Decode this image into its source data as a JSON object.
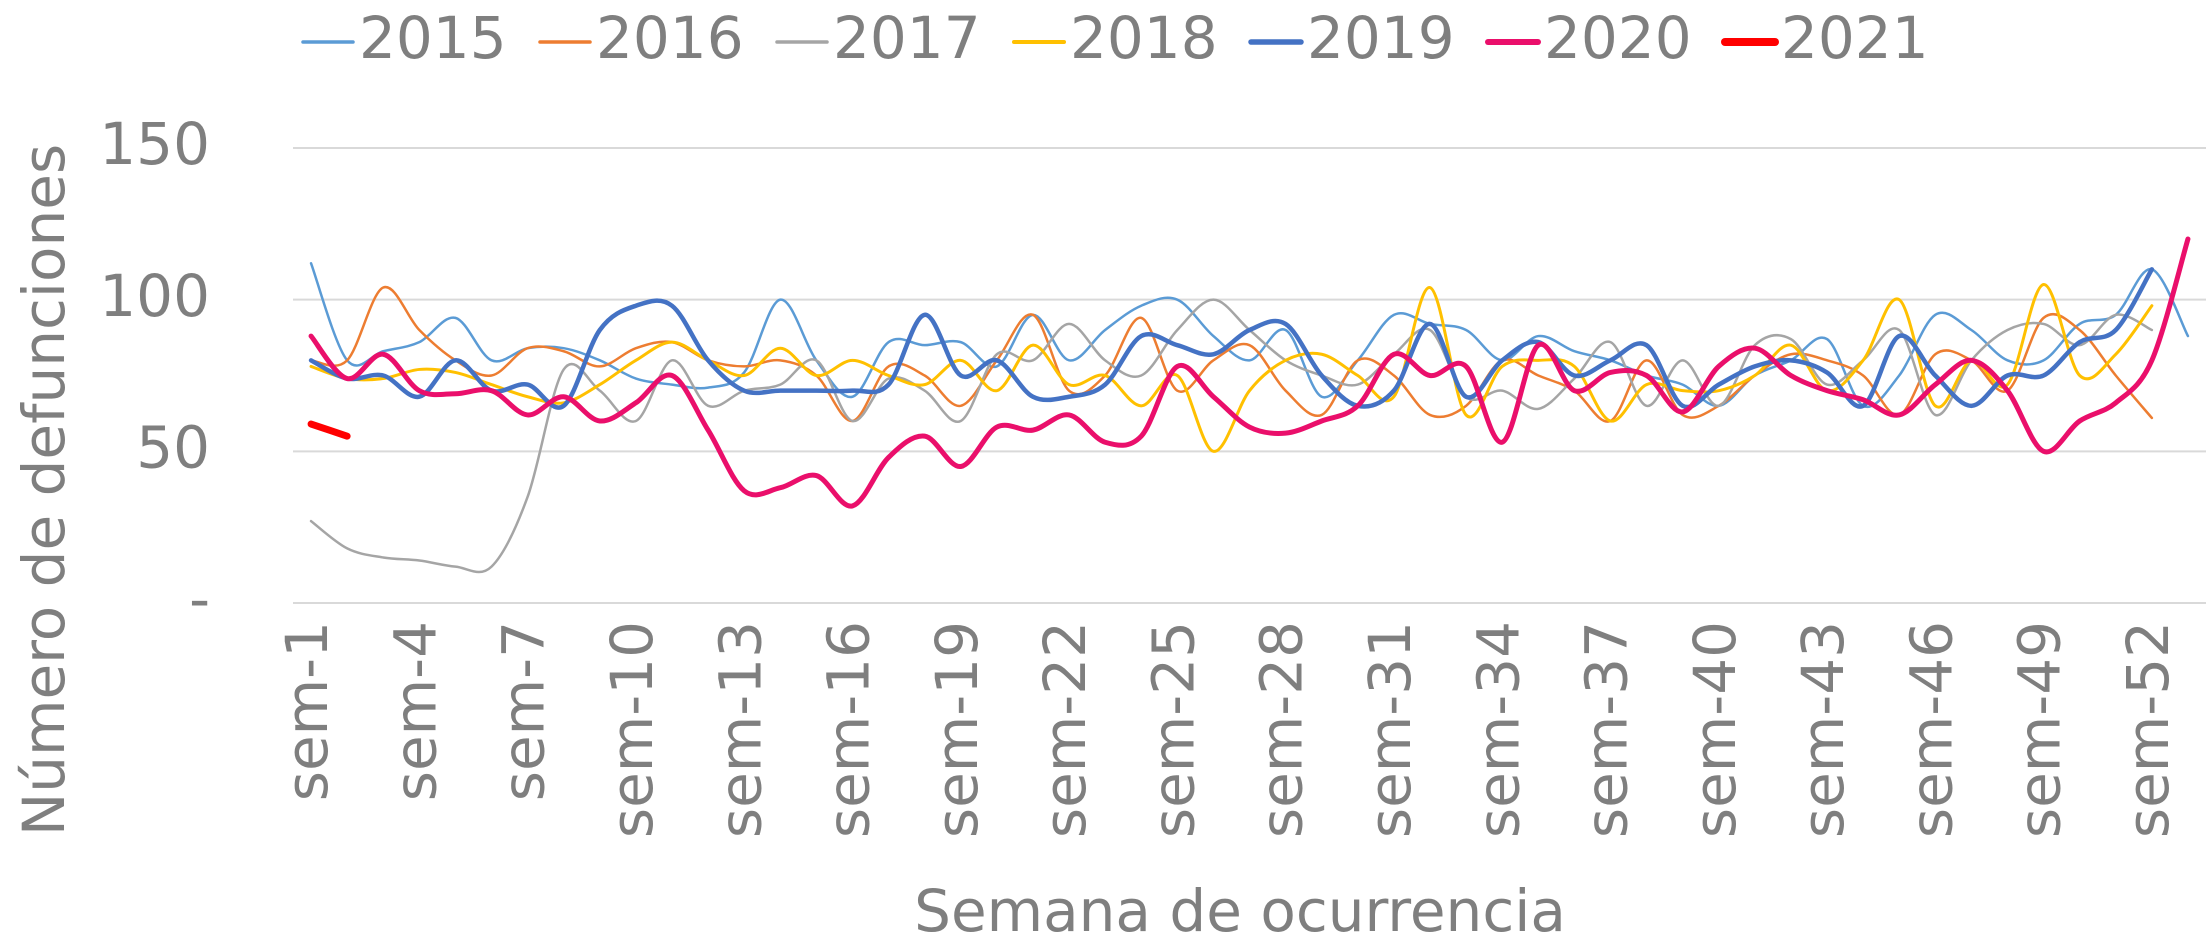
{
  "chart_data": {
    "type": "line",
    "x_label": "Semana de ocurrencia",
    "y_label": "Número de defunciones",
    "categories": [
      "sem-1",
      null,
      null,
      "sem-4",
      null,
      null,
      "sem-7",
      null,
      null,
      "sem-10",
      null,
      null,
      "sem-13",
      null,
      null,
      "sem-16",
      null,
      null,
      "sem-19",
      null,
      null,
      "sem-22",
      null,
      null,
      "sem-25",
      null,
      null,
      "sem-28",
      null,
      null,
      "sem-31",
      null,
      null,
      "sem-34",
      null,
      null,
      "sem-37",
      null,
      null,
      "sem-40",
      null,
      null,
      "sem-43",
      null,
      null,
      "sem-46",
      null,
      null,
      "sem-49",
      null,
      null,
      "sem-52",
      null
    ],
    "ylim": [
      0,
      150
    ],
    "yticks": [
      {
        "value": 0,
        "label": "-"
      },
      50,
      100,
      150
    ],
    "grid": true,
    "legend": "top",
    "series": [
      {
        "name": "2015",
        "color": "#5b9bd5",
        "values": [
          112,
          80,
          83,
          86,
          94,
          80,
          84,
          84,
          80,
          74,
          72,
          71,
          76,
          100,
          80,
          68,
          86,
          85,
          86,
          78,
          95,
          80,
          90,
          98,
          100,
          88,
          80,
          90,
          68,
          80,
          95,
          92,
          90,
          80,
          88,
          83,
          80,
          75,
          72,
          65,
          75,
          80,
          87,
          65,
          75,
          95,
          90,
          80,
          80,
          92,
          95,
          110,
          88
        ]
      },
      {
        "name": "2016",
        "color": "#ed7d31",
        "values": [
          80,
          80,
          104,
          90,
          80,
          75,
          84,
          83,
          78,
          84,
          86,
          80,
          78,
          80,
          75,
          60,
          78,
          75,
          65,
          80,
          95,
          70,
          75,
          94,
          70,
          80,
          85,
          70,
          62,
          80,
          75,
          62,
          65,
          80,
          75,
          70,
          60,
          80,
          62,
          65,
          75,
          82,
          80,
          75,
          62,
          82,
          80,
          70,
          94,
          90,
          75,
          61,
          null
        ]
      },
      {
        "name": "2017",
        "color": "#a5a5a5",
        "values": [
          27,
          18,
          15,
          14,
          12,
          12,
          35,
          77,
          70,
          60,
          80,
          65,
          70,
          72,
          80,
          60,
          74,
          70,
          60,
          82,
          80,
          92,
          80,
          75,
          90,
          100,
          90,
          80,
          75,
          72,
          82,
          90,
          68,
          70,
          64,
          74,
          86,
          65,
          80,
          65,
          85,
          87,
          72,
          80,
          90,
          62,
          80,
          90,
          92,
          85,
          95,
          90,
          null
        ]
      },
      {
        "name": "2018",
        "color": "#ffc000",
        "values": [
          78,
          74,
          74,
          77,
          76,
          72,
          68,
          66,
          72,
          80,
          86,
          80,
          75,
          84,
          75,
          80,
          75,
          72,
          80,
          70,
          85,
          72,
          75,
          65,
          75,
          50,
          70,
          80,
          82,
          75,
          68,
          104,
          62,
          78,
          80,
          78,
          60,
          72,
          70,
          70,
          75,
          85,
          70,
          80,
          100,
          65,
          80,
          72,
          105,
          75,
          82,
          98,
          null
        ]
      },
      {
        "name": "2019",
        "color": "#4472c4",
        "values": [
          80,
          74,
          75,
          68,
          80,
          70,
          72,
          65,
          90,
          98,
          98,
          80,
          70,
          70,
          70,
          70,
          72,
          95,
          75,
          80,
          68,
          68,
          72,
          88,
          85,
          82,
          90,
          92,
          75,
          65,
          70,
          92,
          68,
          80,
          86,
          75,
          80,
          85,
          65,
          72,
          78,
          80,
          76,
          65,
          88,
          75,
          65,
          75,
          75,
          86,
          90,
          110,
          null
        ]
      },
      {
        "name": "2020",
        "color": "#ea0f6b",
        "values": [
          88,
          74,
          82,
          70,
          69,
          70,
          62,
          68,
          60,
          66,
          75,
          57,
          37,
          38,
          42,
          32,
          48,
          55,
          45,
          58,
          57,
          62,
          53,
          55,
          78,
          68,
          58,
          56,
          60,
          65,
          82,
          75,
          78,
          53,
          85,
          70,
          76,
          75,
          63,
          78,
          84,
          75,
          70,
          67,
          62,
          72,
          80,
          70,
          50,
          60,
          66,
          80,
          120
        ]
      },
      {
        "name": "2021",
        "color": "#ff0000",
        "values": [
          59,
          55,
          null,
          null,
          null,
          null,
          null,
          null,
          null,
          null,
          null,
          null,
          null,
          null,
          null,
          null,
          null,
          null,
          null,
          null,
          null,
          null,
          null,
          null,
          null,
          null,
          null,
          null,
          null,
          null,
          null,
          null,
          null,
          null,
          null,
          null,
          null,
          null,
          null,
          null,
          null,
          null,
          null,
          null,
          null,
          null,
          null,
          null,
          null,
          null,
          null,
          null,
          null
        ]
      }
    ]
  }
}
